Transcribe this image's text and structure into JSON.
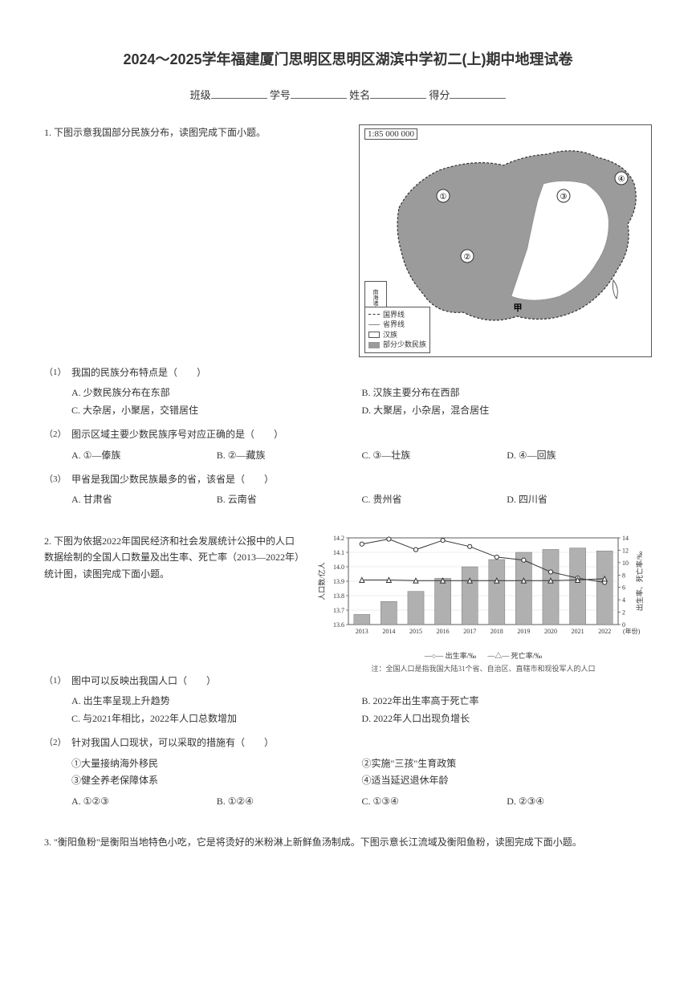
{
  "title": "2024～2025学年福建厦门思明区思明区湖滨中学初二(上)期中地理试卷",
  "header": {
    "class_label": "班级",
    "id_label": "学号",
    "name_label": "姓名",
    "score_label": "得分"
  },
  "q1": {
    "number": "1.",
    "stem": "下图示意我国部分民族分布，读图完成下面小题。",
    "map": {
      "scale": "1:85 000 000",
      "nanhai": "南海诸岛",
      "markers": [
        "①",
        "②",
        "③",
        "④",
        "甲"
      ],
      "china_fill": "#9b9b9b",
      "han_fill": "#ffffff",
      "border_color": "#333333",
      "legend": {
        "national_border": "国界线",
        "province_border": "省界线",
        "han": "汉族",
        "minority": "部分少数民族",
        "minority_color": "#9b9b9b",
        "han_color": "#ffffff"
      }
    },
    "sub": [
      {
        "num": "（1）",
        "stem": "我国的民族分布特点是（　　）",
        "choices": [
          "A. 少数民族分布在东部",
          "B. 汉族主要分布在西部",
          "C. 大杂居，小聚居，交错居住",
          "D. 大聚居，小杂居，混合居住"
        ],
        "layout": "2col"
      },
      {
        "num": "（2）",
        "stem": "图示区域主要少数民族序号对应正确的是（　　）",
        "choices": [
          "A. ①—傣族",
          "B. ②—藏族",
          "C. ③—壮族",
          "D. ④—回族"
        ],
        "layout": "4col"
      },
      {
        "num": "（3）",
        "stem": "甲省是我国少数民族最多的省，该省是（　　）",
        "choices": [
          "A. 甘肃省",
          "B. 云南省",
          "C. 贵州省",
          "D. 四川省"
        ],
        "layout": "4col"
      }
    ]
  },
  "q2": {
    "number": "2.",
    "stem": "下图为依据2022年国民经济和社会发展统计公报中的人口数据绘制的全国人口数量及出生率、死亡率（2013—2022年）统计图，读图完成下面小题。",
    "chart": {
      "type": "combo-bar-line",
      "years": [
        "2013",
        "2014",
        "2015",
        "2016",
        "2017",
        "2018",
        "2019",
        "2020",
        "2021",
        "2022"
      ],
      "population": [
        13.67,
        13.76,
        13.83,
        13.92,
        14.0,
        14.05,
        14.1,
        14.12,
        14.13,
        14.11
      ],
      "birth_rate": [
        13.0,
        13.8,
        12.1,
        13.6,
        12.6,
        10.9,
        10.4,
        8.5,
        7.5,
        6.8
      ],
      "death_rate": [
        7.2,
        7.2,
        7.1,
        7.1,
        7.1,
        7.1,
        7.1,
        7.1,
        7.2,
        7.4
      ],
      "y_left_label": "人口数/亿人",
      "y_left_min": 13.6,
      "y_left_max": 14.2,
      "y_left_ticks": [
        "13.6",
        "13.7",
        "13.8",
        "13.9",
        "14.0",
        "14.1",
        "14.2"
      ],
      "y_right_label": "出生率、死亡率/‰",
      "y_right_min": 0,
      "y_right_max": 14,
      "y_right_ticks": [
        "0",
        "2",
        "4",
        "6",
        "8",
        "10",
        "12",
        "14"
      ],
      "x_label": "(年份)",
      "bar_color": "#b0b0b0",
      "birth_marker": "circle",
      "death_marker": "triangle",
      "line_color": "#333333",
      "grid_color": "#d0d0d0",
      "background": "#ffffff",
      "legend_birth": "出生率/‰",
      "legend_death": "死亡率/‰",
      "note": "注：全国人口是指我国大陆31个省、自治区、直辖市和现役军人的人口"
    },
    "sub": [
      {
        "num": "（1）",
        "stem": "图中可以反映出我国人口（　　）",
        "choices": [
          "A. 出生率呈现上升趋势",
          "B. 2022年出生率高于死亡率",
          "C. 与2021年相比，2022年人口总数增加",
          "D. 2022年人口出现负增长"
        ],
        "layout": "2col"
      },
      {
        "num": "（2）",
        "stem": "针对我国人口现状，可以采取的措施有（　　）",
        "measures": [
          "①大量接纳海外移民",
          "②实施\"三孩\"生育政策",
          "③健全养老保障体系",
          "④适当延迟退休年龄"
        ],
        "choices": [
          "A. ①②③",
          "B. ①②④",
          "C. ①③④",
          "D. ②③④"
        ],
        "layout": "4col"
      }
    ]
  },
  "q3": {
    "number": "3.",
    "stem": "\"衡阳鱼粉\"是衡阳当地特色小吃，它是将烫好的米粉淋上新鲜鱼汤制成。下图示意长江流域及衡阳鱼粉，读图完成下面小题。"
  }
}
